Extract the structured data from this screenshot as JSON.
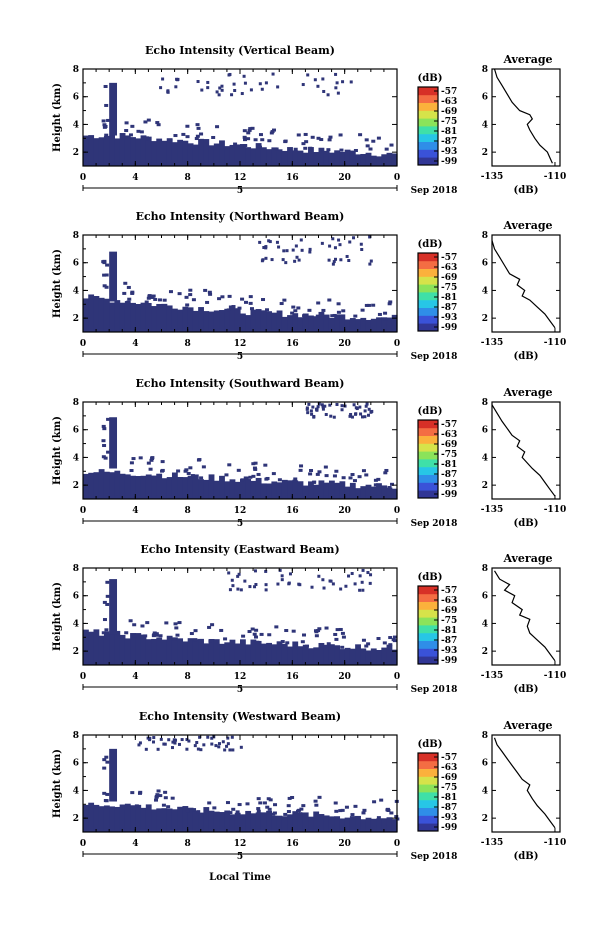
{
  "colors": {
    "echo_fill": "#2f3578",
    "avg_line": "#000000",
    "colorbar": [
      "#313695",
      "#3a52d8",
      "#2f8ee8",
      "#27c6e6",
      "#3fe0a8",
      "#8be35a",
      "#d6e34a",
      "#fbb13c",
      "#f46d43",
      "#d73027"
    ]
  },
  "figure": {
    "xlabel": "Local Time",
    "date_label": "Sep 2018",
    "day_label": "5",
    "ylabel": "Height (km)",
    "avg_title": "Average",
    "avg_unit": "(dB)",
    "colorbar_unit": "(dB)"
  },
  "chart_data": [
    {
      "type": "heatmap",
      "title": "Echo Intensity (Vertical Beam)",
      "ylabel": "Height (km)",
      "x_ticks": [
        "0",
        "4",
        "8",
        "12",
        "16",
        "20",
        "0"
      ],
      "y_ticks": [
        "2",
        "4",
        "6",
        "8"
      ],
      "xlim": [
        0,
        24
      ],
      "ylim": [
        1,
        8
      ],
      "colorbar_ticks": [
        "-57",
        "-63",
        "-69",
        "-75",
        "-81",
        "-87",
        "-93",
        "-99"
      ],
      "echo_base_top": [
        3.2,
        3.2,
        3.0,
        2.8,
        2.6,
        2.4,
        2.2,
        2.1,
        2.0,
        1.8
      ],
      "spike": {
        "x_start": 2.0,
        "x_end": 2.6,
        "top": 7.0
      },
      "scatter_top": {
        "x_start": 5,
        "x_end": 21,
        "y_min": 6.2,
        "y_max": 7.8
      },
      "average": {
        "xlabel": "(dB)",
        "x_ticks": [
          "-135",
          "-110"
        ],
        "y_ticks": [
          "2",
          "4",
          "6",
          "8"
        ],
        "xlim": [
          -135,
          -108
        ],
        "ylim": [
          1,
          8
        ],
        "points": [
          [
            -111,
            1.2
          ],
          [
            -112,
            1.6
          ],
          [
            -113,
            2.0
          ],
          [
            -116,
            2.5
          ],
          [
            -118,
            3.0
          ],
          [
            -120,
            3.6
          ],
          [
            -121,
            4.0
          ],
          [
            -119,
            4.4
          ],
          [
            -120,
            4.7
          ],
          [
            -124,
            5.0
          ],
          [
            -127,
            5.6
          ],
          [
            -129,
            6.2
          ],
          [
            -131,
            6.8
          ],
          [
            -133,
            7.4
          ],
          [
            -134,
            8.0
          ]
        ]
      }
    },
    {
      "type": "heatmap",
      "title": "Echo Intensity (Northward Beam)",
      "ylabel": "Height (km)",
      "x_ticks": [
        "0",
        "4",
        "8",
        "12",
        "16",
        "20",
        "0"
      ],
      "y_ticks": [
        "2",
        "4",
        "6",
        "8"
      ],
      "xlim": [
        0,
        24
      ],
      "ylim": [
        1,
        8
      ],
      "colorbar_ticks": [
        "-57",
        "-63",
        "-69",
        "-75",
        "-81",
        "-87",
        "-93",
        "-99"
      ],
      "echo_base_top": [
        3.5,
        3.3,
        3.0,
        2.8,
        2.6,
        2.4,
        2.3,
        2.2,
        2.1,
        2.0
      ],
      "spike": {
        "x_start": 2.0,
        "x_end": 2.6,
        "top": 6.8
      },
      "scatter_top": {
        "x_start": 13,
        "x_end": 22,
        "y_min": 6.0,
        "y_max": 8.0
      },
      "average": {
        "xlabel": "(dB)",
        "x_ticks": [
          "-135",
          "-110"
        ],
        "y_ticks": [
          "2",
          "4",
          "6",
          "8"
        ],
        "xlim": [
          -135,
          -108
        ],
        "ylim": [
          1,
          8
        ],
        "points": [
          [
            -110,
            1.3
          ],
          [
            -112,
            1.8
          ],
          [
            -114,
            2.3
          ],
          [
            -117,
            2.8
          ],
          [
            -120,
            3.3
          ],
          [
            -123,
            3.6
          ],
          [
            -122,
            4.0
          ],
          [
            -125,
            4.4
          ],
          [
            -124,
            4.8
          ],
          [
            -128,
            5.2
          ],
          [
            -130,
            5.8
          ],
          [
            -132,
            6.4
          ],
          [
            -134,
            7.0
          ],
          [
            -135,
            7.6
          ]
        ]
      }
    },
    {
      "type": "heatmap",
      "title": "Echo Intensity (Southward Beam)",
      "ylabel": "Height (km)",
      "x_ticks": [
        "0",
        "4",
        "8",
        "12",
        "16",
        "20",
        "0"
      ],
      "y_ticks": [
        "2",
        "4",
        "6",
        "8"
      ],
      "xlim": [
        0,
        24
      ],
      "ylim": [
        1,
        8
      ],
      "colorbar_ticks": [
        "-57",
        "-63",
        "-69",
        "-75",
        "-81",
        "-87",
        "-93",
        "-99"
      ],
      "echo_base_top": [
        3.0,
        2.9,
        2.8,
        2.6,
        2.5,
        2.3,
        2.2,
        2.1,
        2.0,
        1.9
      ],
      "spike": {
        "x_start": 2.0,
        "x_end": 2.6,
        "top": 6.9
      },
      "scatter_top": {
        "x_start": 17,
        "x_end": 22,
        "y_min": 7.0,
        "y_max": 8.0
      },
      "average": {
        "xlabel": "(dB)",
        "x_ticks": [
          "-135",
          "-110"
        ],
        "y_ticks": [
          "2",
          "4",
          "6",
          "8"
        ],
        "xlim": [
          -135,
          -108
        ],
        "ylim": [
          1,
          8
        ],
        "points": [
          [
            -110,
            1.2
          ],
          [
            -112,
            1.7
          ],
          [
            -114,
            2.2
          ],
          [
            -116,
            2.7
          ],
          [
            -119,
            3.2
          ],
          [
            -121,
            3.6
          ],
          [
            -123,
            4.0
          ],
          [
            -122,
            4.4
          ],
          [
            -125,
            4.8
          ],
          [
            -124,
            5.2
          ],
          [
            -127,
            5.6
          ],
          [
            -129,
            6.1
          ],
          [
            -131,
            6.6
          ],
          [
            -133,
            7.2
          ],
          [
            -135,
            7.8
          ]
        ]
      }
    },
    {
      "type": "heatmap",
      "title": "Echo Intensity (Eastward Beam)",
      "ylabel": "Height (km)",
      "x_ticks": [
        "0",
        "4",
        "8",
        "12",
        "16",
        "20",
        "0"
      ],
      "y_ticks": [
        "2",
        "4",
        "6",
        "8"
      ],
      "xlim": [
        0,
        24
      ],
      "ylim": [
        1,
        8
      ],
      "colorbar_ticks": [
        "-57",
        "-63",
        "-69",
        "-75",
        "-81",
        "-87",
        "-93",
        "-99"
      ],
      "echo_base_top": [
        3.4,
        3.2,
        3.0,
        2.8,
        2.7,
        2.6,
        2.5,
        2.4,
        2.3,
        2.2
      ],
      "spike": {
        "x_start": 2.0,
        "x_end": 2.6,
        "top": 7.2
      },
      "scatter_top": {
        "x_start": 11,
        "x_end": 22,
        "y_min": 6.5,
        "y_max": 8.0
      },
      "average": {
        "xlabel": "(dB)",
        "x_ticks": [
          "-135",
          "-110"
        ],
        "y_ticks": [
          "2",
          "4",
          "6",
          "8"
        ],
        "xlim": [
          -135,
          -108
        ],
        "ylim": [
          1,
          8
        ],
        "points": [
          [
            -110,
            1.3
          ],
          [
            -112,
            1.8
          ],
          [
            -114,
            2.3
          ],
          [
            -117,
            2.8
          ],
          [
            -120,
            3.3
          ],
          [
            -121,
            3.8
          ],
          [
            -120,
            4.3
          ],
          [
            -124,
            4.6
          ],
          [
            -123,
            5.0
          ],
          [
            -127,
            5.5
          ],
          [
            -126,
            6.0
          ],
          [
            -130,
            6.4
          ],
          [
            -128,
            6.8
          ],
          [
            -132,
            7.2
          ],
          [
            -134,
            7.8
          ]
        ]
      }
    },
    {
      "type": "heatmap",
      "title": "Echo Intensity (Westward Beam)",
      "ylabel": "Height (km)",
      "x_ticks": [
        "0",
        "4",
        "8",
        "12",
        "16",
        "20",
        "0"
      ],
      "y_ticks": [
        "2",
        "4",
        "6",
        "8"
      ],
      "xlim": [
        0,
        24
      ],
      "ylim": [
        1,
        8
      ],
      "colorbar_ticks": [
        "-57",
        "-63",
        "-69",
        "-75",
        "-81",
        "-87",
        "-93",
        "-99"
      ],
      "echo_base_top": [
        3.0,
        3.0,
        2.8,
        2.6,
        2.5,
        2.4,
        2.3,
        2.2,
        2.1,
        2.0
      ],
      "spike": {
        "x_start": 2.0,
        "x_end": 2.6,
        "top": 7.0
      },
      "scatter_top": {
        "x_start": 4,
        "x_end": 12,
        "y_min": 7.0,
        "y_max": 8.0
      },
      "average": {
        "xlabel": "(dB)",
        "x_ticks": [
          "-135",
          "-110"
        ],
        "y_ticks": [
          "2",
          "4",
          "6",
          "8"
        ],
        "xlim": [
          -135,
          -108
        ],
        "ylim": [
          1,
          8
        ],
        "points": [
          [
            -110,
            1.3
          ],
          [
            -112,
            1.8
          ],
          [
            -114,
            2.3
          ],
          [
            -117,
            2.9
          ],
          [
            -119,
            3.4
          ],
          [
            -121,
            4.0
          ],
          [
            -120,
            4.4
          ],
          [
            -123,
            4.8
          ],
          [
            -125,
            5.3
          ],
          [
            -127,
            5.8
          ],
          [
            -129,
            6.3
          ],
          [
            -131,
            6.8
          ],
          [
            -133,
            7.3
          ],
          [
            -134,
            7.8
          ]
        ]
      }
    }
  ]
}
